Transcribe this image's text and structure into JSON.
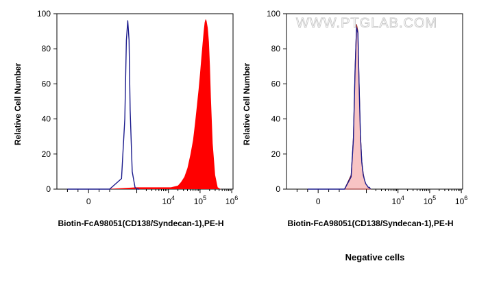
{
  "watermark": "WWW.PTGLAB.COM",
  "caption": "Negative cells",
  "colors": {
    "positive_fill": "#ff0000",
    "negative_fill": "#f8c4c4",
    "negative_outline": "#8b1a1a",
    "control_line": "#1a1a8c",
    "axis": "#000000"
  },
  "chart_data": [
    {
      "type": "area",
      "panel": "left",
      "xlabel": "Biotin-FcA98051(CD138/Syndecan-1),PE-H",
      "ylabel": "Relative Cell Number",
      "ylim": [
        0,
        100
      ],
      "yticks": [
        0,
        20,
        40,
        60,
        80,
        100
      ],
      "x_scale": "biexponential",
      "xticks": [
        {
          "label": "0"
        },
        {
          "label": "10",
          "exp": "4"
        },
        {
          "label": "10",
          "exp": "5"
        },
        {
          "label": "10",
          "exp": "6"
        }
      ],
      "series": [
        {
          "style": "filled",
          "color": "#ff0000",
          "x": [
            150,
            1000,
            3000,
            8000,
            12000,
            20000,
            25000,
            32000,
            40000,
            50000,
            60000,
            70000,
            80000,
            90000,
            100000,
            110000,
            120000,
            130000,
            140000,
            150000,
            160000,
            175000,
            190000,
            205000,
            220000,
            250000,
            300000,
            360000,
            450000
          ],
          "y": [
            0,
            1,
            1,
            1,
            1,
            2,
            4,
            7,
            12,
            20,
            28,
            38,
            48,
            57,
            66,
            75,
            83,
            90,
            95,
            97,
            96,
            92,
            84,
            70,
            52,
            26,
            8,
            1,
            0
          ]
        },
        {
          "style": "line",
          "color": "#1a1a8c",
          "x": [
            -200,
            200,
            330,
            420,
            470,
            520,
            570,
            620,
            720,
            880,
            1050,
            1200
          ],
          "y": [
            0,
            0,
            6,
            40,
            85,
            96,
            85,
            45,
            10,
            1,
            0,
            0
          ]
        }
      ]
    },
    {
      "type": "area",
      "panel": "right",
      "xlabel": "Biotin-FcA98051(CD138/Syndecan-1),PE-H",
      "ylabel": "Relative Cell Number",
      "ylim": [
        0,
        100
      ],
      "yticks": [
        0,
        20,
        40,
        60,
        80,
        100
      ],
      "x_scale": "biexponential",
      "xticks": [
        {
          "label": "0"
        },
        {
          "label": "10",
          "exp": "4"
        },
        {
          "label": "10",
          "exp": "5"
        },
        {
          "label": "10",
          "exp": "6"
        }
      ],
      "series": [
        {
          "style": "filled",
          "color": "#f8c4c4",
          "x": [
            -100,
            250,
            330,
            390,
            440,
            490,
            540,
            590,
            650,
            720,
            800,
            880,
            960,
            1060,
            1150,
            1250,
            1350
          ],
          "y": [
            0,
            0,
            8,
            30,
            70,
            94,
            90,
            62,
            32,
            16,
            9,
            5,
            3,
            2,
            1,
            1,
            0
          ]
        },
        {
          "style": "line",
          "color": "#1a1a8c",
          "x": [
            -100,
            250,
            330,
            390,
            440,
            490,
            540,
            590,
            650,
            720,
            800,
            880,
            960,
            1060,
            1150,
            1250,
            1350
          ],
          "y": [
            0,
            0,
            7,
            28,
            68,
            92,
            89,
            60,
            30,
            15,
            8,
            5,
            3,
            2,
            1,
            1,
            0
          ]
        }
      ]
    }
  ]
}
